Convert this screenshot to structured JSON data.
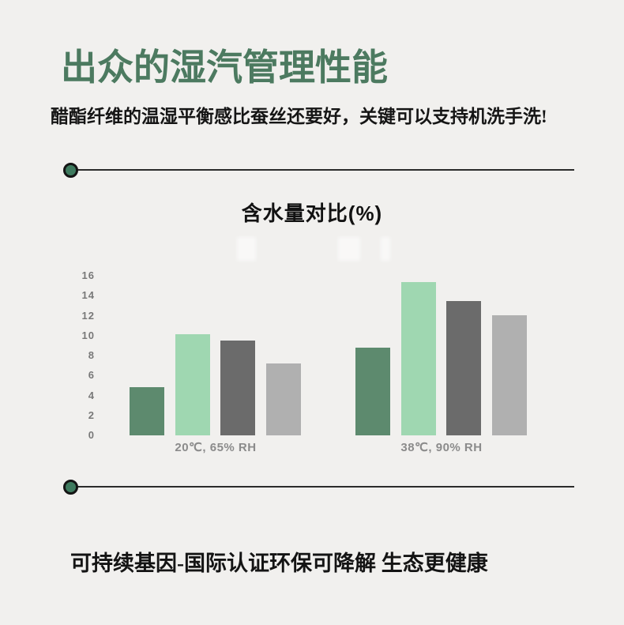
{
  "page": {
    "background": "#f1f0ee",
    "accent_green": "#4c7a60"
  },
  "header": {
    "title": "出众的湿汽管理性能",
    "subtitle": "醋酯纤维的温湿平衡感比蚕丝还要好，关键可以支持机洗手洗!"
  },
  "chart_data": {
    "type": "bar",
    "title": "含水量对比(%)",
    "categories": [
      "20℃, 65% RH",
      "38℃, 90% RH"
    ],
    "series": [
      {
        "name": "dark-green",
        "color": "#5d8a6e",
        "values": [
          4.8,
          8.8
        ]
      },
      {
        "name": "light-green",
        "color": "#9fd7b1",
        "values": [
          10.1,
          15.4
        ]
      },
      {
        "name": "dark-gray",
        "color": "#6b6b6b",
        "values": [
          9.5,
          13.5
        ]
      },
      {
        "name": "light-gray",
        "color": "#b0b0b0",
        "values": [
          7.2,
          12.0
        ]
      }
    ],
    "ylim": [
      0,
      16
    ],
    "ytick_step": 2,
    "yticks": [
      0,
      2,
      4,
      6,
      8,
      10,
      12,
      14,
      16
    ],
    "grid": false,
    "legend": false,
    "xlabel": "",
    "ylabel": ""
  },
  "footer": {
    "text": "可持续基因-国际认证环保可降解 生态更健康"
  }
}
